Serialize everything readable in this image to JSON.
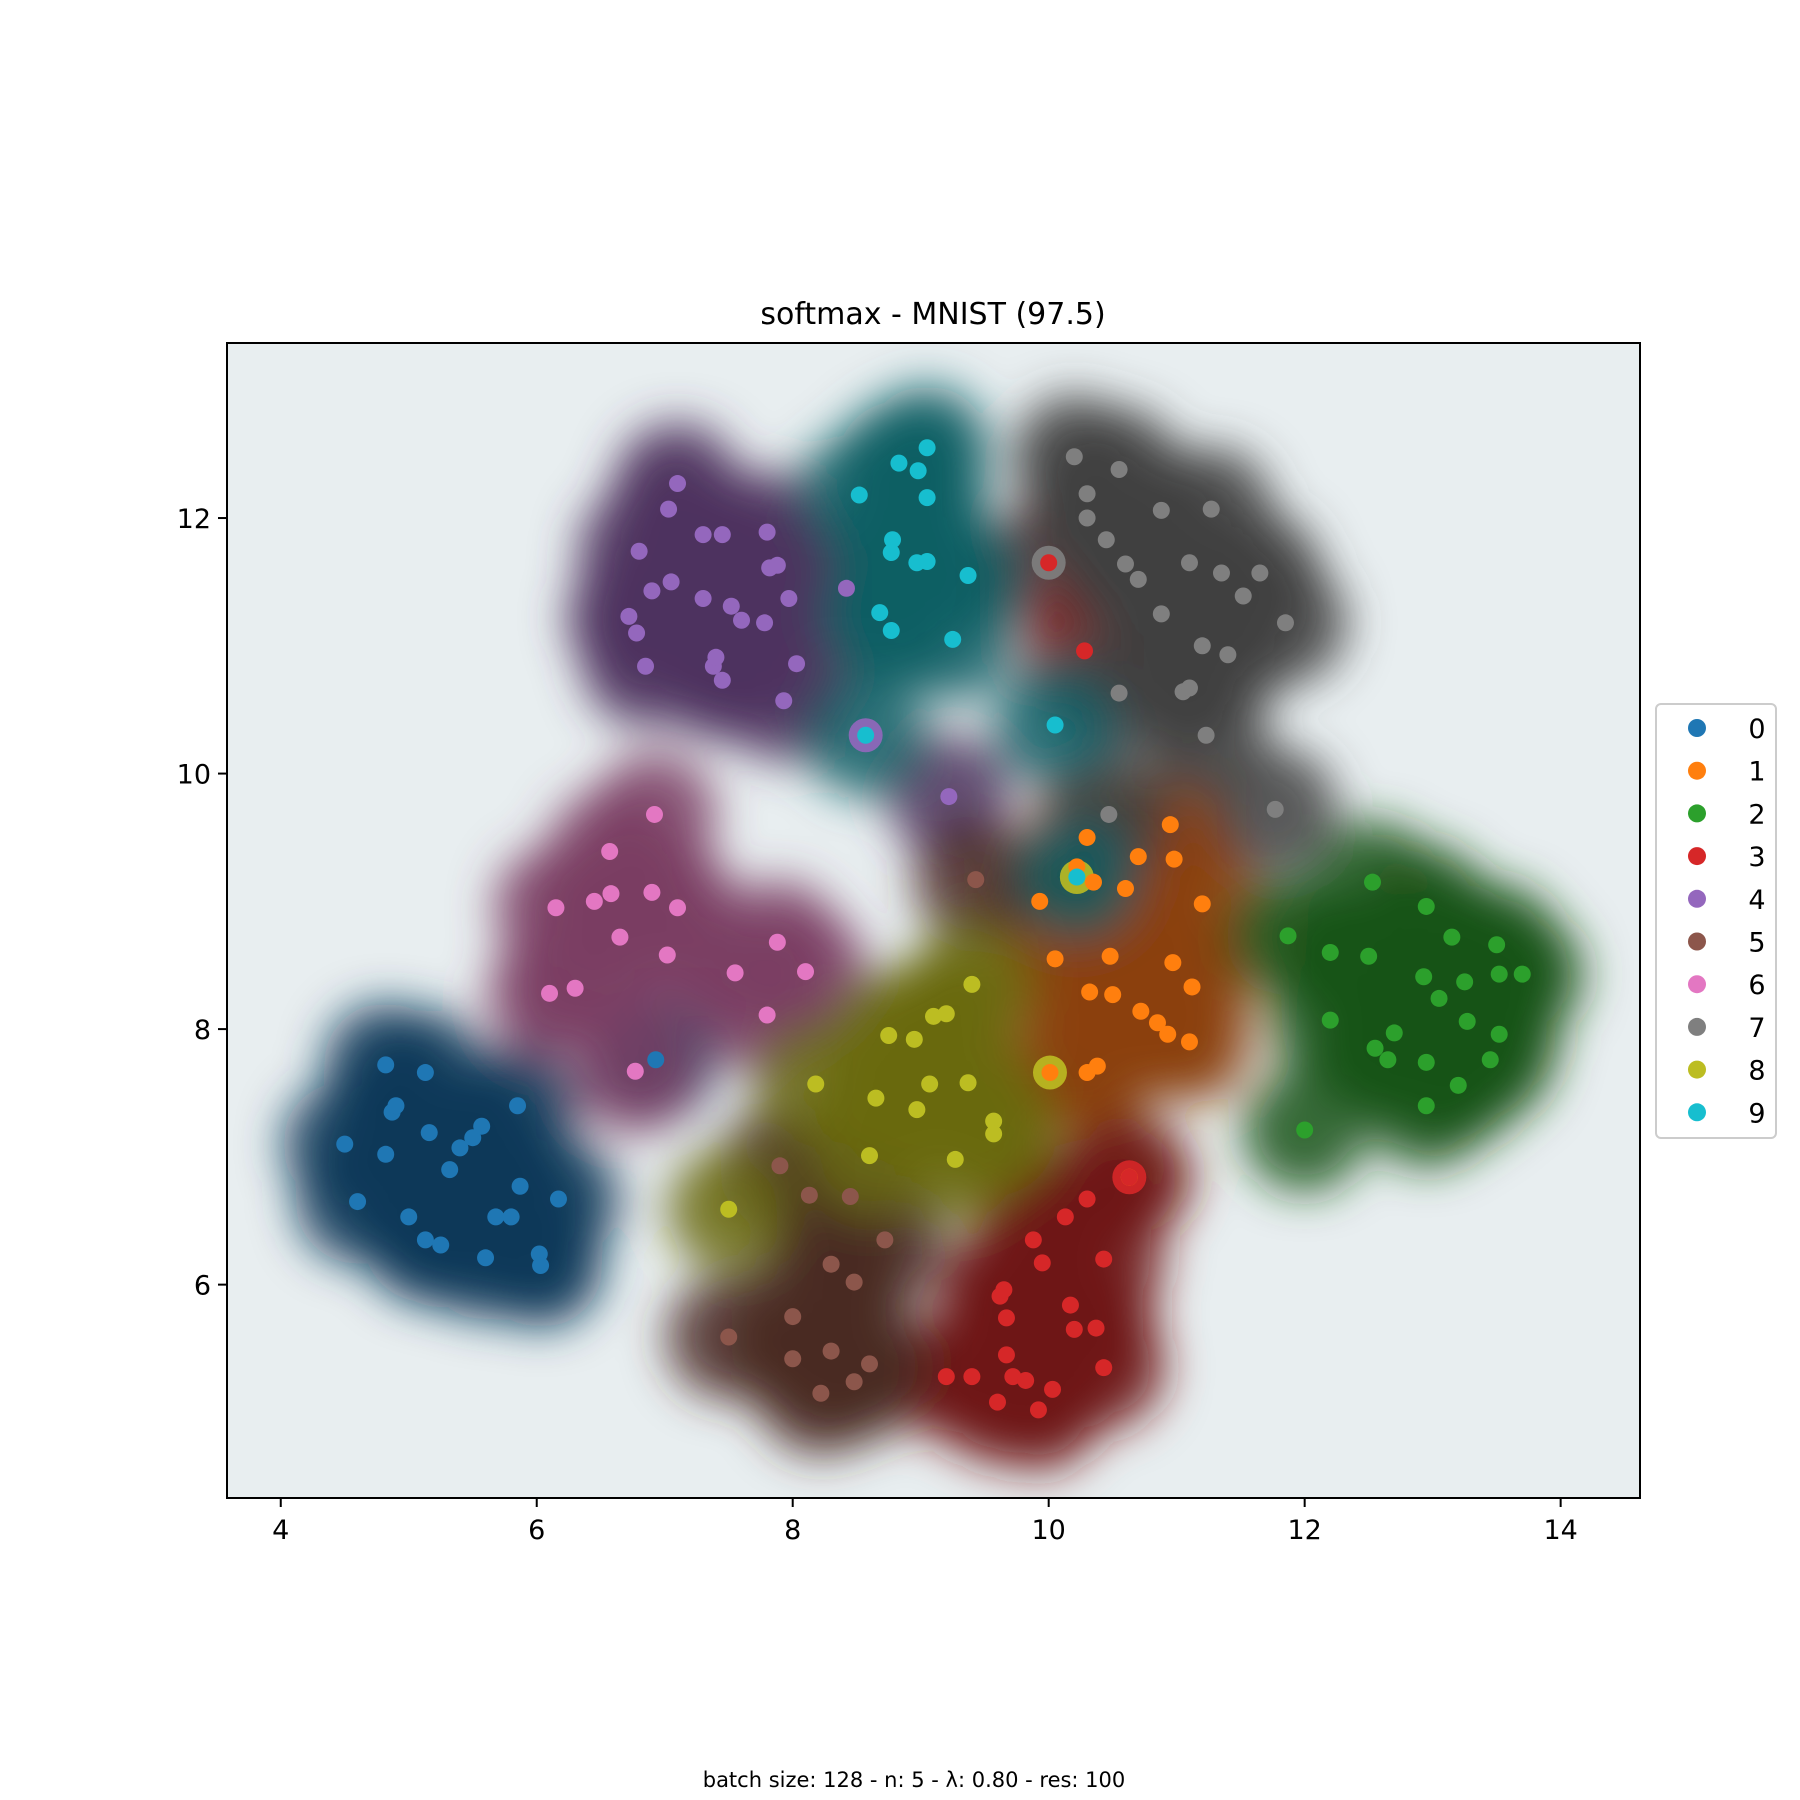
{
  "chart_data": {
    "type": "scatter",
    "title": "softmax - MNIST (97.5)",
    "xlabel": "",
    "ylabel": "",
    "xlim": [
      3.58,
      14.62
    ],
    "ylim": [
      4.33,
      13.37
    ],
    "xticks": [
      4,
      6,
      8,
      10,
      12,
      14
    ],
    "yticks": [
      6,
      8,
      10,
      12
    ],
    "grid": false,
    "legend_position": "right, outside plot",
    "footer": "batch size: 128 - n: 5 - λ: 0.80 - res: 100",
    "background": "decision regions shaded by predicted class",
    "series": [
      {
        "name": "0",
        "color": "#1f77b4",
        "region_color": "#0e3a59",
        "points": [
          [
            4.5,
            7.1
          ],
          [
            4.6,
            6.65
          ],
          [
            4.82,
            7.72
          ],
          [
            4.82,
            7.02
          ],
          [
            4.87,
            7.35
          ],
          [
            4.9,
            7.4
          ],
          [
            5.0,
            6.53
          ],
          [
            5.13,
            6.35
          ],
          [
            5.13,
            7.66
          ],
          [
            5.16,
            7.19
          ],
          [
            5.25,
            6.31
          ],
          [
            5.32,
            6.9
          ],
          [
            5.4,
            7.07
          ],
          [
            5.5,
            7.15
          ],
          [
            5.57,
            7.24
          ],
          [
            5.6,
            6.21
          ],
          [
            5.68,
            6.53
          ],
          [
            5.8,
            6.53
          ],
          [
            5.85,
            7.4
          ],
          [
            5.87,
            6.77
          ],
          [
            6.02,
            6.24
          ],
          [
            6.03,
            6.15
          ],
          [
            6.17,
            6.67
          ],
          [
            6.93,
            7.76
          ]
        ]
      },
      {
        "name": "1",
        "color": "#ff7f0e",
        "region_color": "#8b4108",
        "points": [
          [
            9.93,
            9.0
          ],
          [
            10.05,
            8.55
          ],
          [
            10.3,
            9.5
          ],
          [
            10.22,
            9.27
          ],
          [
            10.35,
            9.15
          ],
          [
            10.32,
            8.29
          ],
          [
            10.48,
            8.57
          ],
          [
            10.5,
            8.27
          ],
          [
            10.6,
            9.1
          ],
          [
            10.7,
            9.35
          ],
          [
            10.72,
            8.14
          ],
          [
            10.85,
            8.05
          ],
          [
            10.93,
            7.96
          ],
          [
            10.95,
            9.6
          ],
          [
            10.97,
            8.52
          ],
          [
            10.98,
            9.33
          ],
          [
            11.1,
            7.9
          ],
          [
            11.12,
            8.33
          ],
          [
            11.2,
            8.98
          ],
          [
            10.3,
            7.66
          ],
          [
            10.38,
            7.71
          ],
          [
            10.01,
            7.66
          ],
          [
            10.63,
            6.84
          ]
        ]
      },
      {
        "name": "2",
        "color": "#2ca02c",
        "region_color": "#1a5416",
        "points": [
          [
            11.87,
            8.73
          ],
          [
            12.2,
            8.6
          ],
          [
            12.2,
            8.07
          ],
          [
            12.5,
            8.57
          ],
          [
            12.53,
            9.15
          ],
          [
            12.55,
            7.85
          ],
          [
            12.65,
            7.76
          ],
          [
            12.7,
            7.97
          ],
          [
            12.93,
            8.41
          ],
          [
            12.95,
            8.96
          ],
          [
            12.95,
            7.74
          ],
          [
            12.95,
            7.4
          ],
          [
            13.05,
            8.24
          ],
          [
            13.15,
            8.72
          ],
          [
            13.2,
            7.56
          ],
          [
            13.25,
            8.37
          ],
          [
            13.27,
            8.06
          ],
          [
            13.45,
            7.76
          ],
          [
            13.5,
            8.66
          ],
          [
            13.52,
            8.43
          ],
          [
            13.52,
            7.96
          ],
          [
            13.7,
            8.43
          ],
          [
            12.0,
            7.21
          ]
        ]
      },
      {
        "name": "3",
        "color": "#d62728",
        "region_color": "#6e1414",
        "points": [
          [
            10.0,
            11.65
          ],
          [
            10.28,
            10.96
          ],
          [
            9.4,
            5.28
          ],
          [
            9.6,
            5.08
          ],
          [
            9.62,
            5.91
          ],
          [
            9.65,
            5.96
          ],
          [
            9.67,
            5.74
          ],
          [
            9.67,
            5.45
          ],
          [
            9.72,
            5.28
          ],
          [
            9.82,
            5.25
          ],
          [
            9.88,
            6.35
          ],
          [
            9.92,
            5.02
          ],
          [
            9.95,
            6.17
          ],
          [
            10.03,
            5.18
          ],
          [
            10.13,
            6.53
          ],
          [
            10.17,
            5.84
          ],
          [
            10.2,
            5.65
          ],
          [
            10.3,
            6.67
          ],
          [
            10.37,
            5.66
          ],
          [
            10.43,
            5.35
          ],
          [
            10.43,
            6.2
          ],
          [
            9.2,
            5.28
          ],
          [
            10.63,
            6.84
          ]
        ]
      },
      {
        "name": "4",
        "color": "#9467bd",
        "region_color": "#4d315e",
        "points": [
          [
            7.1,
            12.27
          ],
          [
            7.03,
            12.07
          ],
          [
            6.8,
            11.74
          ],
          [
            6.9,
            11.43
          ],
          [
            7.05,
            11.5
          ],
          [
            6.72,
            11.23
          ],
          [
            6.78,
            11.1
          ],
          [
            6.85,
            10.84
          ],
          [
            7.3,
            11.87
          ],
          [
            7.45,
            11.87
          ],
          [
            7.3,
            11.37
          ],
          [
            7.52,
            11.31
          ],
          [
            7.6,
            11.2
          ],
          [
            7.38,
            10.84
          ],
          [
            7.4,
            10.91
          ],
          [
            7.45,
            10.73
          ],
          [
            7.8,
            11.89
          ],
          [
            7.82,
            11.61
          ],
          [
            7.88,
            11.63
          ],
          [
            7.78,
            11.18
          ],
          [
            7.97,
            11.37
          ],
          [
            8.03,
            10.86
          ],
          [
            7.93,
            10.57
          ],
          [
            8.42,
            11.45
          ],
          [
            9.22,
            9.82
          ]
        ]
      },
      {
        "name": "5",
        "color": "#8c564b",
        "region_color": "#4a2a24",
        "points": [
          [
            9.43,
            9.17
          ],
          [
            7.9,
            6.93
          ],
          [
            8.13,
            6.7
          ],
          [
            8.45,
            6.69
          ],
          [
            8.72,
            6.35
          ],
          [
            8.3,
            6.16
          ],
          [
            8.48,
            6.02
          ],
          [
            7.5,
            5.59
          ],
          [
            8.0,
            5.75
          ],
          [
            8.0,
            5.42
          ],
          [
            8.3,
            5.48
          ],
          [
            8.6,
            5.38
          ],
          [
            8.22,
            5.15
          ],
          [
            8.48,
            5.24
          ]
        ]
      },
      {
        "name": "6",
        "color": "#e377c2",
        "region_color": "#7a3d63",
        "points": [
          [
            6.92,
            9.68
          ],
          [
            6.57,
            9.39
          ],
          [
            6.15,
            8.95
          ],
          [
            6.45,
            9.0
          ],
          [
            6.58,
            9.06
          ],
          [
            6.9,
            9.07
          ],
          [
            7.1,
            8.95
          ],
          [
            6.65,
            8.72
          ],
          [
            7.02,
            8.58
          ],
          [
            6.1,
            8.28
          ],
          [
            6.3,
            8.32
          ],
          [
            7.55,
            8.44
          ],
          [
            7.8,
            8.11
          ],
          [
            7.88,
            8.68
          ],
          [
            8.1,
            8.45
          ],
          [
            6.77,
            7.67
          ]
        ]
      },
      {
        "name": "7",
        "color": "#7f7f7f",
        "region_color": "#404040",
        "points": [
          [
            10.2,
            12.48
          ],
          [
            10.3,
            12.19
          ],
          [
            10.3,
            12.0
          ],
          [
            10.45,
            11.83
          ],
          [
            10.55,
            12.38
          ],
          [
            10.6,
            11.64
          ],
          [
            10.7,
            11.52
          ],
          [
            10.88,
            12.06
          ],
          [
            10.88,
            11.25
          ],
          [
            11.1,
            11.65
          ],
          [
            11.2,
            11.0
          ],
          [
            11.27,
            12.07
          ],
          [
            11.35,
            11.57
          ],
          [
            11.52,
            11.39
          ],
          [
            11.65,
            11.57
          ],
          [
            11.85,
            11.18
          ],
          [
            11.4,
            10.93
          ],
          [
            10.55,
            10.63
          ],
          [
            11.05,
            10.64
          ],
          [
            11.1,
            10.67
          ],
          [
            11.23,
            10.3
          ],
          [
            11.77,
            9.72
          ],
          [
            10.47,
            9.68
          ]
        ]
      },
      {
        "name": "8",
        "color": "#bcbd22",
        "region_color": "#6a6a12",
        "points": [
          [
            9.4,
            8.35
          ],
          [
            9.2,
            8.12
          ],
          [
            9.1,
            8.1
          ],
          [
            8.75,
            7.95
          ],
          [
            8.95,
            7.92
          ],
          [
            8.18,
            7.57
          ],
          [
            8.65,
            7.46
          ],
          [
            9.07,
            7.57
          ],
          [
            9.37,
            7.58
          ],
          [
            8.97,
            7.37
          ],
          [
            9.57,
            7.28
          ],
          [
            9.57,
            7.18
          ],
          [
            8.6,
            7.01
          ],
          [
            9.27,
            6.98
          ],
          [
            7.5,
            6.59
          ]
        ]
      },
      {
        "name": "9",
        "color": "#17becf",
        "region_color": "#0b5e64",
        "points": [
          [
            9.05,
            12.55
          ],
          [
            8.83,
            12.43
          ],
          [
            8.98,
            12.37
          ],
          [
            8.52,
            12.18
          ],
          [
            9.05,
            12.16
          ],
          [
            8.78,
            11.83
          ],
          [
            8.77,
            11.73
          ],
          [
            8.97,
            11.65
          ],
          [
            9.05,
            11.66
          ],
          [
            9.37,
            11.55
          ],
          [
            8.68,
            11.26
          ],
          [
            8.77,
            11.12
          ],
          [
            9.25,
            11.05
          ],
          [
            10.05,
            10.38
          ],
          [
            8.57,
            10.3
          ],
          [
            10.22,
            9.19
          ]
        ]
      }
    ],
    "misclassified": [
      {
        "label": "9",
        "predicted": "4",
        "x": 8.57,
        "y": 10.3
      },
      {
        "label": "9",
        "predicted": "8",
        "x": 10.22,
        "y": 9.19
      },
      {
        "label": "1",
        "predicted": "8",
        "x": 10.01,
        "y": 7.66
      },
      {
        "label": "3",
        "predicted": "7",
        "x": 10.0,
        "y": 11.65
      },
      {
        "label": "1",
        "predicted": "3",
        "x": 10.63,
        "y": 6.84
      }
    ]
  }
}
